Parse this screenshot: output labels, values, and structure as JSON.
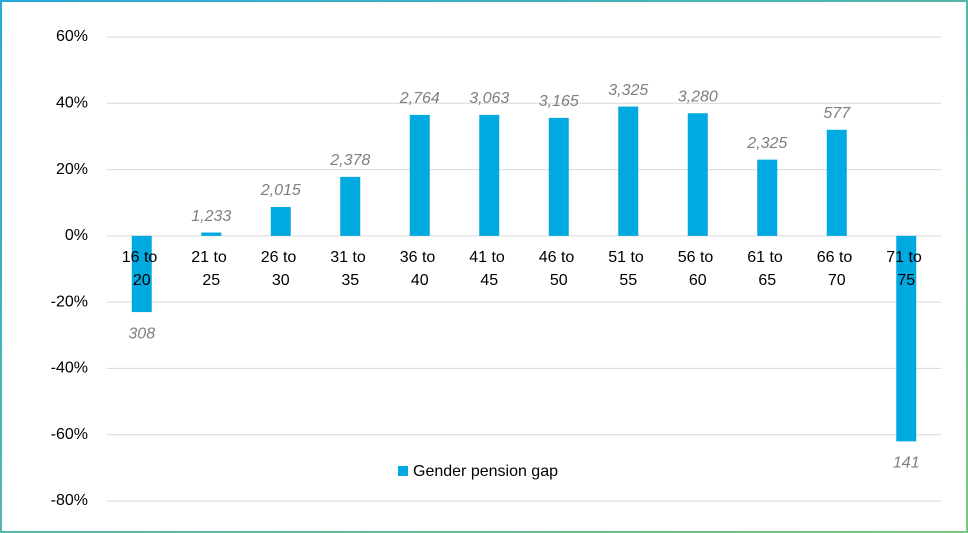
{
  "chart_data": {
    "type": "bar",
    "categories": [
      "16 to 20",
      "21 to 25",
      "26 to 30",
      "31 to 35",
      "36 to 40",
      "41 to 45",
      "46 to 50",
      "51 to 55",
      "56 to 60",
      "61 to 65",
      "66 to 70",
      "71 to 75"
    ],
    "series": [
      {
        "name": "Gender pension gap",
        "color": "#00a9e0",
        "values": [
          -23,
          1,
          8.7,
          17.8,
          36.5,
          36.5,
          35.6,
          39,
          37,
          23,
          32,
          -62
        ],
        "data_labels": [
          "308",
          "1,233",
          "2,015",
          "2,378",
          "2,764",
          "3,063",
          "3,165",
          "3,325",
          "3,280",
          "2,325",
          "577",
          "141"
        ]
      }
    ],
    "ylim": [
      -80,
      60
    ],
    "yticks": [
      {
        "value": -80,
        "label": "-80%"
      },
      {
        "value": -60,
        "label": "-60%"
      },
      {
        "value": -40,
        "label": "-40%"
      },
      {
        "value": -20,
        "label": "-20%"
      },
      {
        "value": 0,
        "label": "0%"
      },
      {
        "value": 20,
        "label": "20%"
      },
      {
        "value": 40,
        "label": "40%"
      },
      {
        "value": 60,
        "label": "60%"
      }
    ],
    "grid": true,
    "legend": "bottom"
  }
}
